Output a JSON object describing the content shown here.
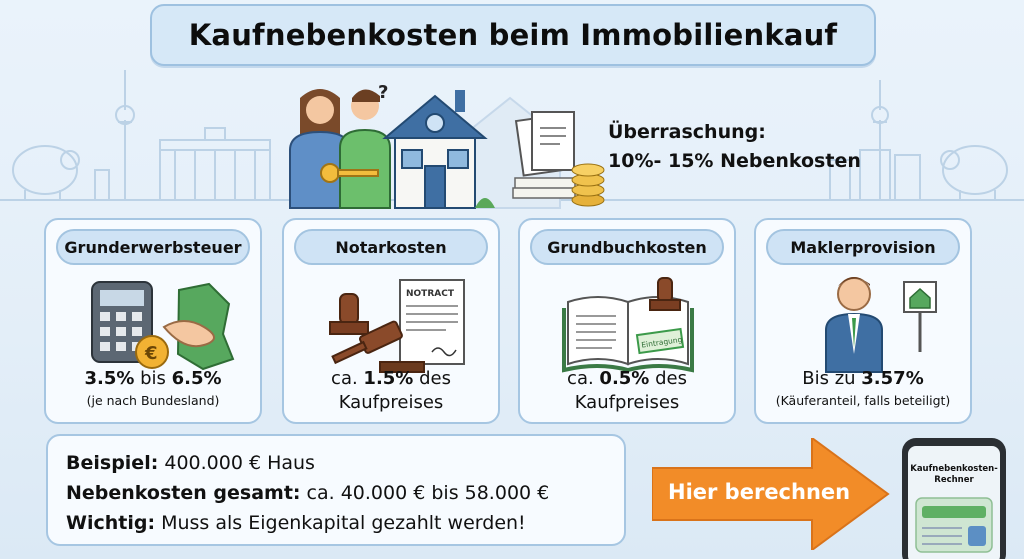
{
  "title": "Kaufnebenkosten beim Immobilienkauf",
  "surprise": {
    "line1": "Überraschung:",
    "line2": "10%- 15% Nebenkosten"
  },
  "hero": {
    "contract_label": "",
    "question_mark": "?"
  },
  "cards": [
    {
      "title": "Grunderwerbsteuer",
      "value_a": "3.5%",
      "value_mid": " bis ",
      "value_b": "6.5%",
      "note": "(je nach Bundesland)",
      "icon": "calculator-euro-handshake"
    },
    {
      "title": "Notarkosten",
      "prefix": "ca. ",
      "value": "1.5%",
      "suffix": " des",
      "line2": "Kaufpreises",
      "art_label": "NOTRACT",
      "icon": "stamp-gavel-contract"
    },
    {
      "title": "Grundbuchkosten",
      "prefix": "ca. ",
      "value": "0.5%",
      "suffix": " des",
      "line2": "Kaufpreises",
      "art_label": "Eintragung",
      "icon": "land-register-book"
    },
    {
      "title": "Maklerprovision",
      "prefix": "Bis zu ",
      "value": "3.57%",
      "note": "(Käuferanteil, falls beteiligt)",
      "icon": "agent-with-house-sign"
    }
  ],
  "example": [
    {
      "label": "Beispiel:",
      "text": " 400.000 € Haus"
    },
    {
      "label": "Nebenkosten gesamt:",
      "text": " ca. 40.000 € bis 58.000 €"
    },
    {
      "label": "Wichtig:",
      "text": " Muss als Eigenkapital gezahlt werden!"
    }
  ],
  "cta": {
    "label": "Hier berechnen"
  },
  "phone": {
    "title_line1": "Kaufnebenkosten-",
    "title_line2": "Rechner"
  },
  "colors": {
    "accent_orange": "#f28c28",
    "card_border": "#a6c6e2",
    "pill_bg": "#cfe3f5",
    "green": "#3c9a4a"
  }
}
